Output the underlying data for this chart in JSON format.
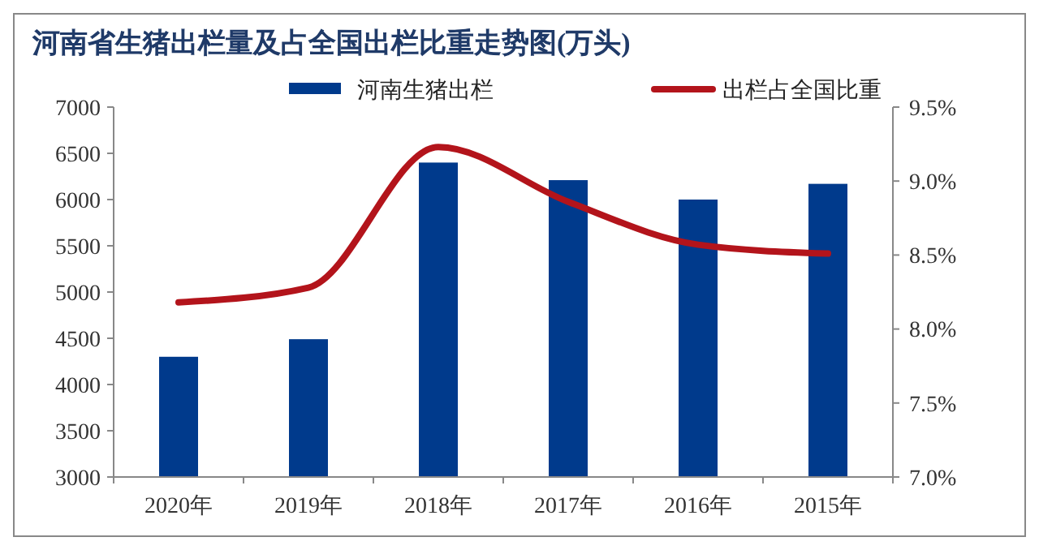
{
  "chart_data": {
    "type": "bar",
    "title": "河南省生猪出栏量及占全国出栏比重走势图(万头)",
    "categories": [
      "2020年",
      "2019年",
      "2018年",
      "2017年",
      "2016年",
      "2015年"
    ],
    "series": [
      {
        "name": "河南生猪出栏",
        "color": "#003a8c",
        "values": [
          4300,
          4490,
          6400,
          6210,
          6000,
          6170
        ]
      },
      {
        "name": "出栏占全国比重",
        "type": "line",
        "axis": "y2",
        "color": "#b3141b",
        "values": [
          8.18,
          8.28,
          9.23,
          8.86,
          8.57,
          8.51
        ]
      }
    ],
    "ylim": [
      3000,
      7000
    ],
    "yticks": [
      3000,
      3500,
      4000,
      4500,
      5000,
      5500,
      6000,
      6500,
      7000
    ],
    "y2lim": [
      7.0,
      9.5
    ],
    "y2ticks": [
      {
        "value": 7.0,
        "label": "7.0%"
      },
      {
        "value": 7.5,
        "label": "7.5%"
      },
      {
        "value": 8.0,
        "label": "8.0%"
      },
      {
        "value": 8.5,
        "label": "8.5%"
      },
      {
        "value": 9.0,
        "label": "9.0%"
      },
      {
        "value": 9.5,
        "label": "9.5%"
      }
    ],
    "legend": "top",
    "grid": false
  }
}
